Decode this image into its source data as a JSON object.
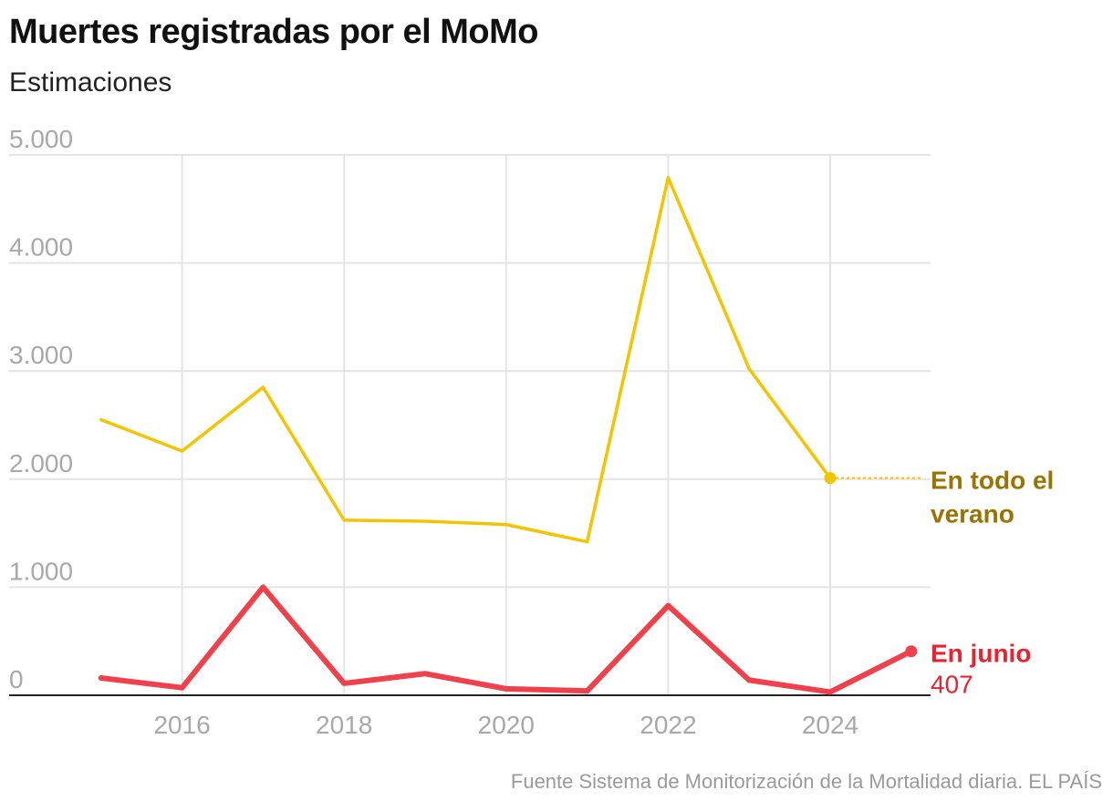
{
  "title": "Muertes registradas por el MoMo",
  "subtitle": "Estimaciones",
  "source": "Fuente Sistema de Monitorización de la Mortalidad diaria. EL PAÍS",
  "colors": {
    "summer": "#f5c400",
    "summer_label": "#9a7400",
    "june": "#f0404c",
    "june_label": "#e8222f",
    "grid": "#e4e4e4",
    "axis": "#222222",
    "tick": "#a8a8a8"
  },
  "chart_data": {
    "type": "line",
    "title": "Muertes registradas por el MoMo",
    "subtitle": "Estimaciones",
    "xlabel": "",
    "ylabel": "",
    "x": [
      2015,
      2016,
      2017,
      2018,
      2019,
      2020,
      2021,
      2022,
      2023,
      2024,
      2025
    ],
    "xlim": [
      2014,
      2025.6
    ],
    "ylim": [
      0,
      5000
    ],
    "xticks": [
      2016,
      2018,
      2020,
      2022,
      2024
    ],
    "xtick_labels": [
      "2016",
      "2018",
      "2020",
      "2022",
      "2024"
    ],
    "yticks": [
      0,
      1000,
      2000,
      3000,
      4000,
      5000
    ],
    "ytick_labels": [
      "0",
      "1.000",
      "2.000",
      "3.000",
      "4.000",
      "5.000"
    ],
    "grid": true,
    "series": [
      {
        "name": "En todo el verano",
        "label_lines": [
          "En todo el",
          "verano"
        ],
        "values": [
          2550,
          2260,
          2850,
          1620,
          1610,
          1580,
          1420,
          4790,
          3020,
          2010,
          null
        ]
      },
      {
        "name": "En junio",
        "label_lines": [
          "En junio"
        ],
        "value_label": "407",
        "values": [
          160,
          70,
          1000,
          110,
          200,
          60,
          40,
          830,
          140,
          30,
          407
        ]
      }
    ]
  }
}
